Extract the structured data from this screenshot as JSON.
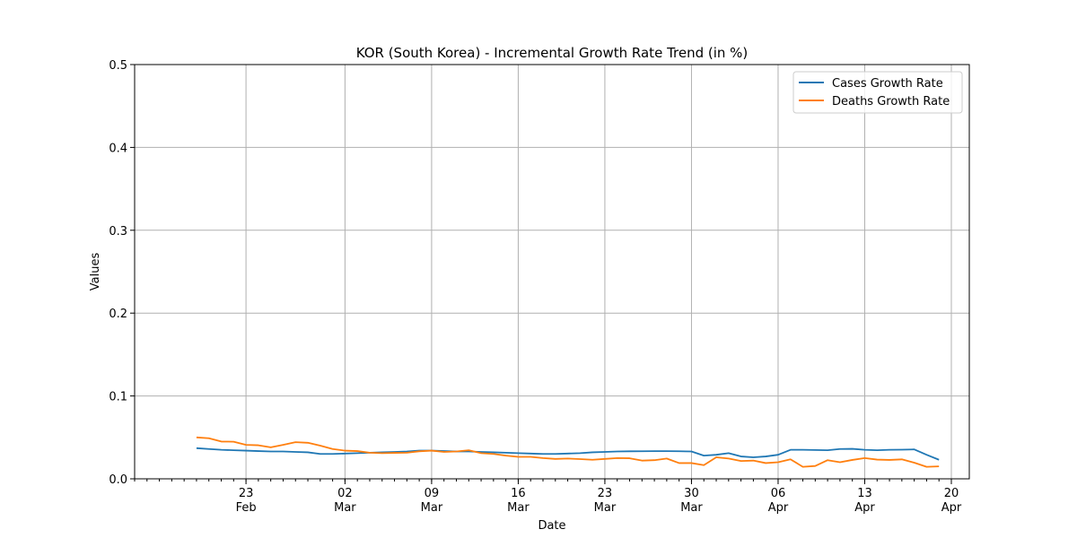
{
  "chart_data": {
    "type": "line",
    "title": "KOR (South Korea) - Incremental Growth Rate Trend (in %)",
    "xlabel": "Date",
    "ylabel": "Values",
    "ylim": [
      0,
      0.5
    ],
    "xlim": [
      "2020-02-14",
      "2020-04-20"
    ],
    "grid": true,
    "legend_position": "top-right",
    "y_ticks": [
      "0.0",
      "0.1",
      "0.2",
      "0.3",
      "0.4",
      "0.5"
    ],
    "x_ticks": [
      {
        "date": "2020-02-23",
        "day": "23",
        "month": "Feb"
      },
      {
        "date": "2020-03-02",
        "day": "02",
        "month": "Mar"
      },
      {
        "date": "2020-03-09",
        "day": "09",
        "month": "Mar"
      },
      {
        "date": "2020-03-16",
        "day": "16",
        "month": "Mar"
      },
      {
        "date": "2020-03-23",
        "day": "23",
        "month": "Mar"
      },
      {
        "date": "2020-03-30",
        "day": "30",
        "month": "Mar"
      },
      {
        "date": "2020-04-06",
        "day": "06",
        "month": "Apr"
      },
      {
        "date": "2020-04-13",
        "day": "13",
        "month": "Apr"
      },
      {
        "date": "2020-04-20",
        "day": "20",
        "month": "Apr"
      }
    ],
    "x": [
      "2020-02-19",
      "2020-02-20",
      "2020-02-21",
      "2020-02-22",
      "2020-02-23",
      "2020-02-24",
      "2020-02-25",
      "2020-02-26",
      "2020-02-27",
      "2020-02-28",
      "2020-02-29",
      "2020-03-01",
      "2020-03-02",
      "2020-03-03",
      "2020-03-04",
      "2020-03-05",
      "2020-03-06",
      "2020-03-07",
      "2020-03-08",
      "2020-03-09",
      "2020-03-10",
      "2020-03-11",
      "2020-03-12",
      "2020-03-13",
      "2020-03-14",
      "2020-03-15",
      "2020-03-16",
      "2020-03-17",
      "2020-03-18",
      "2020-03-19",
      "2020-03-20",
      "2020-03-21",
      "2020-03-22",
      "2020-03-23",
      "2020-03-24",
      "2020-03-25",
      "2020-03-26",
      "2020-03-27",
      "2020-03-28",
      "2020-03-29",
      "2020-03-30",
      "2020-03-31",
      "2020-04-01",
      "2020-04-02",
      "2020-04-03",
      "2020-04-04",
      "2020-04-05",
      "2020-04-06",
      "2020-04-07",
      "2020-04-08",
      "2020-04-09",
      "2020-04-10",
      "2020-04-11",
      "2020-04-12",
      "2020-04-13",
      "2020-04-14",
      "2020-04-15",
      "2020-04-16",
      "2020-04-17",
      "2020-04-18",
      "2020-04-19"
    ],
    "series": [
      {
        "name": "Cases Growth Rate",
        "color": "#1f77b4",
        "values": [
          0.037,
          0.036,
          0.035,
          0.0345,
          0.034,
          0.0335,
          0.033,
          0.033,
          0.0325,
          0.032,
          0.03,
          0.03,
          0.0305,
          0.031,
          0.0315,
          0.032,
          0.0325,
          0.033,
          0.034,
          0.034,
          0.0335,
          0.033,
          0.033,
          0.0325,
          0.032,
          0.0315,
          0.031,
          0.0305,
          0.03,
          0.03,
          0.0305,
          0.031,
          0.032,
          0.0325,
          0.033,
          0.0332,
          0.0333,
          0.0334,
          0.0334,
          0.0333,
          0.033,
          0.028,
          0.029,
          0.031,
          0.027,
          0.026,
          0.027,
          0.029,
          0.035,
          0.035,
          0.0348,
          0.0345,
          0.036,
          0.0362,
          0.035,
          0.0345,
          0.035,
          0.0352,
          0.0355,
          0.029,
          0.023
        ]
      },
      {
        "name": "Deaths Growth Rate",
        "color": "#ff7f0e",
        "values": [
          0.05,
          0.049,
          0.045,
          0.0448,
          0.041,
          0.0405,
          0.038,
          0.041,
          0.0442,
          0.0435,
          0.04,
          0.036,
          0.034,
          0.0335,
          0.0315,
          0.031,
          0.0313,
          0.0315,
          0.0332,
          0.034,
          0.0325,
          0.033,
          0.0345,
          0.031,
          0.03,
          0.028,
          0.0265,
          0.0265,
          0.025,
          0.024,
          0.0245,
          0.0238,
          0.023,
          0.024,
          0.025,
          0.0248,
          0.022,
          0.0225,
          0.0245,
          0.019,
          0.019,
          0.0165,
          0.026,
          0.0245,
          0.0215,
          0.022,
          0.019,
          0.02,
          0.0235,
          0.0145,
          0.0155,
          0.0225,
          0.02,
          0.0228,
          0.025,
          0.0232,
          0.0228,
          0.0235,
          0.0195,
          0.0145,
          0.015
        ]
      }
    ]
  }
}
